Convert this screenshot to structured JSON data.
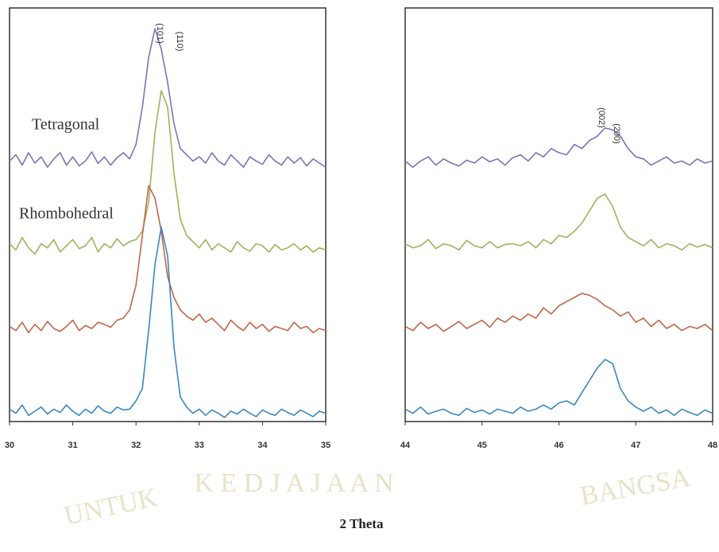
{
  "chart_data": [
    {
      "type": "line",
      "xlim": [
        30,
        35
      ],
      "xticks": [
        30,
        31,
        32,
        33,
        34,
        35
      ],
      "ylim": [
        0,
        100
      ],
      "x": [
        30.0,
        30.1,
        30.2,
        30.3,
        30.4,
        30.5,
        30.6,
        30.7,
        30.8,
        30.9,
        31.0,
        31.1,
        31.2,
        31.3,
        31.4,
        31.5,
        31.6,
        31.7,
        31.8,
        31.9,
        32.0,
        32.1,
        32.2,
        32.3,
        32.4,
        32.5,
        32.6,
        32.7,
        32.8,
        32.9,
        33.0,
        33.1,
        33.2,
        33.3,
        33.4,
        33.5,
        33.6,
        33.7,
        33.8,
        33.9,
        34.0,
        34.1,
        34.2,
        34.3,
        34.4,
        34.5,
        34.6,
        34.7,
        34.8,
        34.9,
        35.0
      ],
      "series": [
        {
          "color": "#7b74b8",
          "values": [
            63,
            64.5,
            62,
            65,
            62.5,
            64,
            61.5,
            63.5,
            65,
            62,
            64,
            61.8,
            63,
            65.2,
            62.4,
            64,
            62,
            63.8,
            65,
            63.5,
            67,
            76,
            88,
            95,
            90,
            82,
            72,
            66,
            64.5,
            63,
            64,
            62.5,
            65,
            63,
            62,
            64.5,
            63,
            61.5,
            64,
            63,
            62.2,
            64.5,
            63,
            62,
            64,
            62.5,
            63.8,
            61.8,
            63.5,
            62.5,
            61.5
          ]
        },
        {
          "color": "#9fb35a",
          "values": [
            43,
            41.5,
            44.5,
            42,
            40.5,
            43,
            42,
            44,
            41,
            42.5,
            44,
            41.8,
            42.5,
            44.5,
            41,
            43,
            42,
            44.2,
            42.5,
            43.5,
            44,
            46,
            53,
            70,
            80,
            76,
            60,
            49,
            45,
            43.5,
            42,
            44,
            41.5,
            43,
            42,
            41,
            43.5,
            42,
            41.2,
            43,
            42.5,
            41,
            42.8,
            41.5,
            42,
            43,
            41.5,
            42.5,
            41,
            42,
            41.5
          ]
        },
        {
          "color": "#c0674a",
          "values": [
            23,
            22,
            24,
            21.5,
            23.5,
            22,
            24.2,
            22.5,
            21.8,
            23,
            24.5,
            22,
            23.2,
            22.5,
            24,
            23.5,
            22.8,
            24.5,
            25,
            27,
            33,
            45,
            57,
            54,
            46,
            35,
            30,
            27,
            25.5,
            24.5,
            26,
            24,
            25,
            23.5,
            22,
            24.5,
            23,
            22,
            24,
            22.5,
            23.5,
            21.8,
            23,
            22.5,
            22,
            24,
            22.5,
            23,
            21.5,
            22.5,
            22
          ]
        },
        {
          "color": "#3a86c4",
          "values": [
            3,
            2,
            4,
            1.5,
            2.5,
            3.5,
            1.8,
            3,
            2.2,
            4,
            2.5,
            1.5,
            3,
            2,
            3.8,
            2.5,
            2,
            3.5,
            2.8,
            3,
            5,
            8,
            22,
            38,
            47,
            40,
            18,
            6,
            3.5,
            2,
            3,
            1.5,
            2.8,
            2,
            1,
            2.5,
            1.8,
            3,
            2,
            1.2,
            2.8,
            2,
            1.5,
            3,
            2.2,
            1.5,
            2.8,
            2,
            1.2,
            2.5,
            2
          ]
        }
      ],
      "annotations": [
        "(101)",
        "(110)",
        "Tetragonal",
        "Rhombohedral"
      ]
    },
    {
      "type": "line",
      "xlim": [
        44,
        48
      ],
      "xticks": [
        44,
        45,
        46,
        47,
        48
      ],
      "ylim": [
        0,
        100
      ],
      "x": [
        44.0,
        44.1,
        44.2,
        44.3,
        44.4,
        44.5,
        44.6,
        44.7,
        44.8,
        44.9,
        45.0,
        45.1,
        45.2,
        45.3,
        45.4,
        45.5,
        45.6,
        45.7,
        45.8,
        45.9,
        46.0,
        46.1,
        46.2,
        46.3,
        46.4,
        46.5,
        46.6,
        46.7,
        46.8,
        46.9,
        47.0,
        47.1,
        47.2,
        47.3,
        47.4,
        47.5,
        47.6,
        47.7,
        47.8,
        47.9,
        48.0
      ],
      "series": [
        {
          "color": "#7b74b8",
          "values": [
            63,
            61.5,
            63,
            64,
            62,
            63.5,
            62.5,
            61.8,
            63.2,
            62.5,
            64,
            62.8,
            63.5,
            62,
            63.8,
            64.5,
            63,
            65,
            64,
            66,
            65,
            64.5,
            67,
            66,
            68,
            69,
            71,
            70.5,
            69,
            66,
            64,
            63.5,
            62,
            63,
            64,
            62.5,
            63,
            62,
            63.5,
            62.5,
            63
          ]
        },
        {
          "color": "#9fb35a",
          "values": [
            43,
            42,
            42.5,
            44,
            41.8,
            43,
            42.5,
            41.5,
            43.8,
            42.5,
            42,
            43.5,
            42,
            42.8,
            43,
            42.5,
            43.5,
            42,
            44,
            43,
            45,
            44.5,
            46,
            48,
            51,
            54,
            55,
            52,
            47,
            44.5,
            43.5,
            42.5,
            44,
            42,
            43,
            42.5,
            41.5,
            43,
            42.2,
            42.8,
            42
          ]
        },
        {
          "color": "#c0674a",
          "values": [
            23,
            22,
            24,
            22.5,
            23.5,
            21.8,
            23,
            24.2,
            22.5,
            23.5,
            24.5,
            22.8,
            25,
            24,
            25.5,
            24.5,
            26,
            25,
            27.5,
            26,
            28,
            29,
            30,
            31,
            30.5,
            29.5,
            28,
            27,
            25.5,
            26.5,
            24,
            25,
            23,
            24.5,
            22.5,
            23.5,
            22,
            23,
            22.5,
            23.5,
            22
          ]
        },
        {
          "color": "#3a86c4",
          "values": [
            3,
            2,
            3.5,
            1.8,
            2.5,
            3,
            2,
            1.5,
            3.2,
            2.2,
            2.8,
            1.8,
            3,
            2.5,
            2,
            3.5,
            2.5,
            3,
            4,
            3,
            4.5,
            5,
            4,
            7,
            10,
            13,
            15,
            14,
            8,
            5,
            3.5,
            2.5,
            3.5,
            2,
            2.8,
            1.5,
            3,
            2.2,
            1.5,
            2.8,
            2
          ]
        }
      ],
      "annotations": [
        "(002)",
        "(200)"
      ]
    }
  ],
  "x_label": "2 Theta",
  "watermark": [
    "UNTUK",
    "K E D J A J A A N",
    "BANGSA"
  ]
}
